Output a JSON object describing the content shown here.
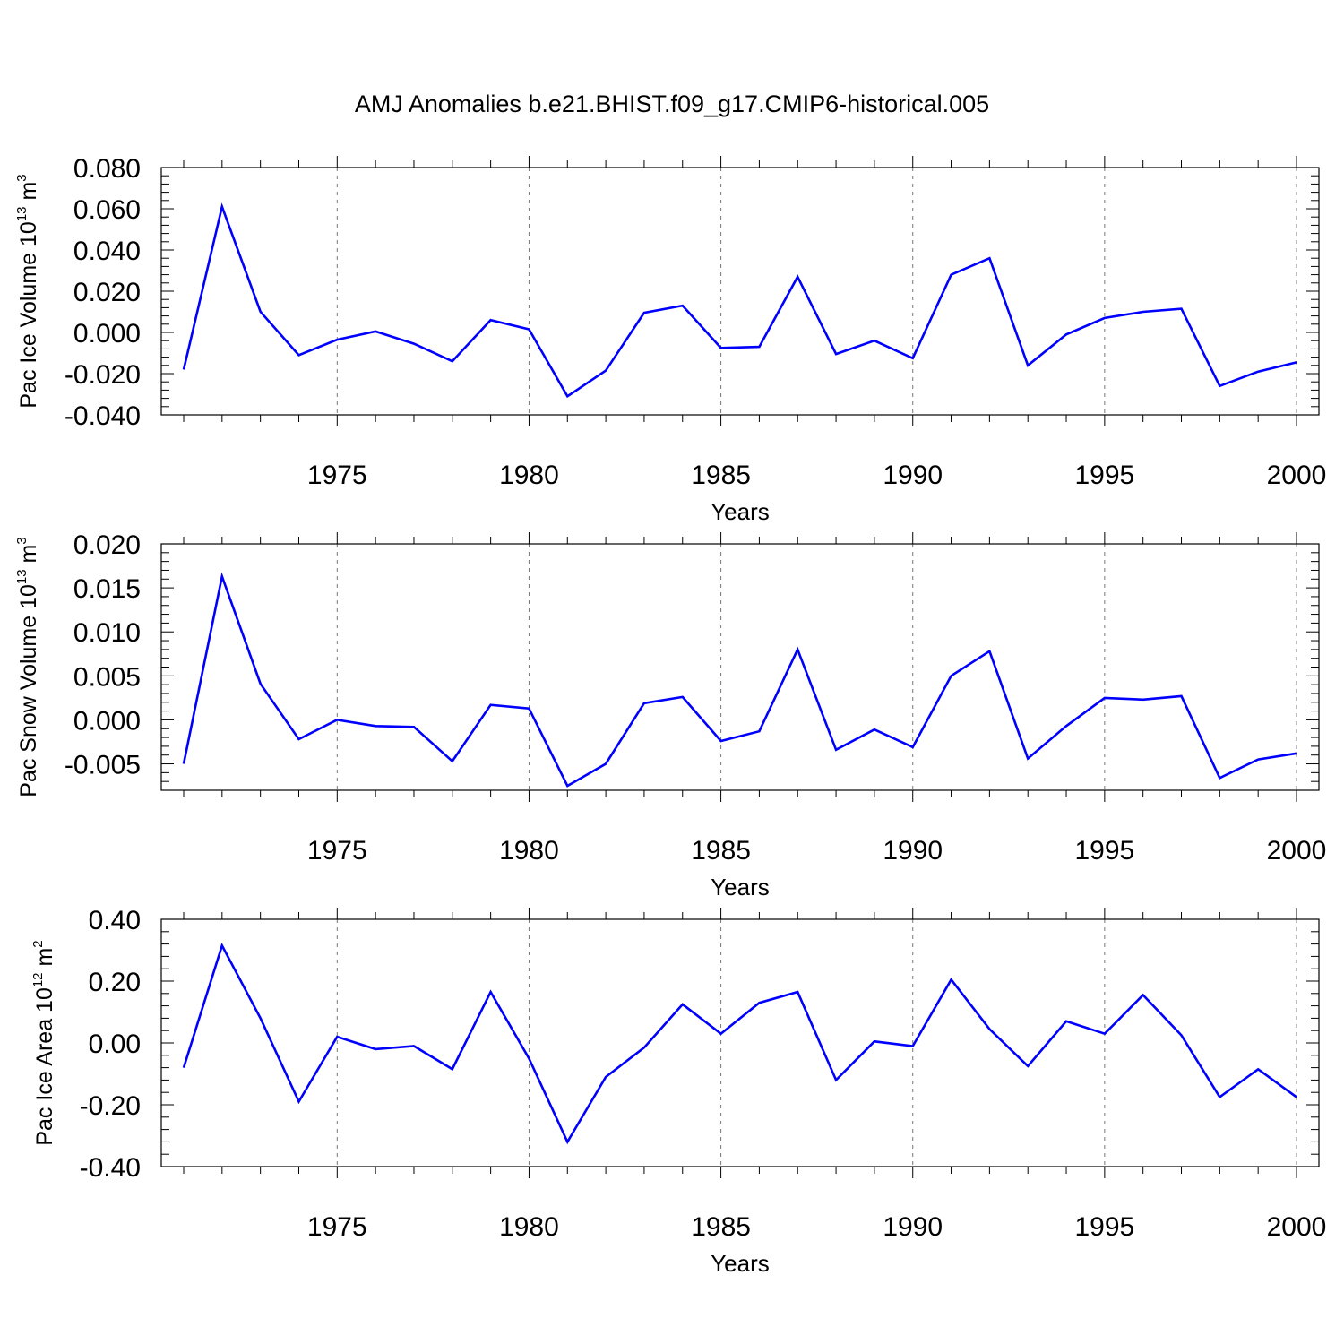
{
  "title": "AMJ Anomalies b.e21.BHIST.f09_g17.CMIP6-historical.005",
  "chart_data": [
    {
      "type": "line",
      "xlabel": "Years",
      "ylabel": {
        "text": "Pac Ice Volume 10",
        "exp": "13",
        "unit": " m",
        "unit_exp": "3"
      },
      "xlim": [
        1971,
        2000
      ],
      "ylim": [
        -0.04,
        0.08
      ],
      "x_ticks": [
        1975,
        1980,
        1985,
        1990,
        1995,
        2000
      ],
      "x_tick_labels": [
        "1975",
        "1980",
        "1985",
        "1990",
        "1995",
        "2000"
      ],
      "y_ticks": [
        -0.04,
        -0.02,
        0.0,
        0.02,
        0.04,
        0.06,
        0.08
      ],
      "y_tick_labels": [
        "-0.040",
        "-0.020",
        "0.000",
        "0.020",
        "0.040",
        "0.060",
        "0.080"
      ],
      "grid": "vertical dashed at major x ticks",
      "color": "#0000ff",
      "x": [
        1971,
        1972,
        1973,
        1974,
        1975,
        1976,
        1977,
        1978,
        1979,
        1980,
        1981,
        1982,
        1983,
        1984,
        1985,
        1986,
        1987,
        1988,
        1989,
        1990,
        1991,
        1992,
        1993,
        1994,
        1995,
        1996,
        1997,
        1998,
        1999,
        2000
      ],
      "y": [
        -0.018,
        0.061,
        0.01,
        -0.011,
        -0.0035,
        0.0005,
        -0.0055,
        -0.014,
        0.006,
        0.0015,
        -0.031,
        -0.0185,
        0.0095,
        0.013,
        -0.0075,
        -0.007,
        0.027,
        -0.0105,
        -0.004,
        -0.0125,
        0.028,
        0.036,
        -0.016,
        -0.001,
        0.007,
        0.01,
        0.0115,
        -0.026,
        -0.019,
        -0.0145
      ]
    },
    {
      "type": "line",
      "xlabel": "Years",
      "ylabel": {
        "text": "Pac Snow Volume 10",
        "exp": "13",
        "unit": " m",
        "unit_exp": "3"
      },
      "xlim": [
        1971,
        2000
      ],
      "ylim": [
        -0.008,
        0.02
      ],
      "x_ticks": [
        1975,
        1980,
        1985,
        1990,
        1995,
        2000
      ],
      "x_tick_labels": [
        "1975",
        "1980",
        "1985",
        "1990",
        "1995",
        "2000"
      ],
      "y_ticks": [
        -0.005,
        0.0,
        0.005,
        0.01,
        0.015,
        0.02
      ],
      "y_tick_labels": [
        "-0.005",
        "0.000",
        "0.005",
        "0.010",
        "0.015",
        "0.020"
      ],
      "grid": "vertical dashed at major x ticks",
      "color": "#0000ff",
      "x": [
        1971,
        1972,
        1973,
        1974,
        1975,
        1976,
        1977,
        1978,
        1979,
        1980,
        1981,
        1982,
        1983,
        1984,
        1985,
        1986,
        1987,
        1988,
        1989,
        1990,
        1991,
        1992,
        1993,
        1994,
        1995,
        1996,
        1997,
        1998,
        1999,
        2000
      ],
      "y": [
        -0.005,
        0.0163,
        0.0041,
        -0.0022,
        0.0,
        -0.0007,
        -0.0008,
        -0.0047,
        0.0017,
        0.0013,
        -0.0075,
        -0.005,
        0.0019,
        0.0026,
        -0.0024,
        -0.0013,
        0.008,
        -0.0034,
        -0.0011,
        -0.0031,
        0.005,
        0.0078,
        -0.0044,
        -0.0007,
        0.0025,
        0.0023,
        0.0027,
        -0.0066,
        -0.0045,
        -0.0038
      ]
    },
    {
      "type": "line",
      "xlabel": "Years",
      "ylabel": {
        "text": "Pac Ice Area 10",
        "exp": "12",
        "unit": " m",
        "unit_exp": "2"
      },
      "xlim": [
        1971,
        2000
      ],
      "ylim": [
        -0.4,
        0.4
      ],
      "x_ticks": [
        1975,
        1980,
        1985,
        1990,
        1995,
        2000
      ],
      "x_tick_labels": [
        "1975",
        "1980",
        "1985",
        "1990",
        "1995",
        "2000"
      ],
      "y_ticks": [
        -0.4,
        -0.2,
        0.0,
        0.2,
        0.4
      ],
      "y_tick_labels": [
        "-0.40",
        "-0.20",
        "0.00",
        "0.20",
        "0.40"
      ],
      "grid": "vertical dashed at major x ticks",
      "color": "#0000ff",
      "x": [
        1971,
        1972,
        1973,
        1974,
        1975,
        1976,
        1977,
        1978,
        1979,
        1980,
        1981,
        1982,
        1983,
        1984,
        1985,
        1986,
        1987,
        1988,
        1989,
        1990,
        1991,
        1992,
        1993,
        1994,
        1995,
        1996,
        1997,
        1998,
        1999,
        2000
      ],
      "y": [
        -0.08,
        0.315,
        0.08,
        -0.19,
        0.02,
        -0.02,
        -0.01,
        -0.085,
        0.165,
        -0.05,
        -0.32,
        -0.11,
        -0.015,
        0.125,
        0.03,
        0.13,
        0.165,
        -0.12,
        0.005,
        -0.01,
        0.205,
        0.045,
        -0.075,
        0.07,
        0.03,
        0.155,
        0.025,
        -0.175,
        -0.085,
        -0.175
      ]
    }
  ]
}
